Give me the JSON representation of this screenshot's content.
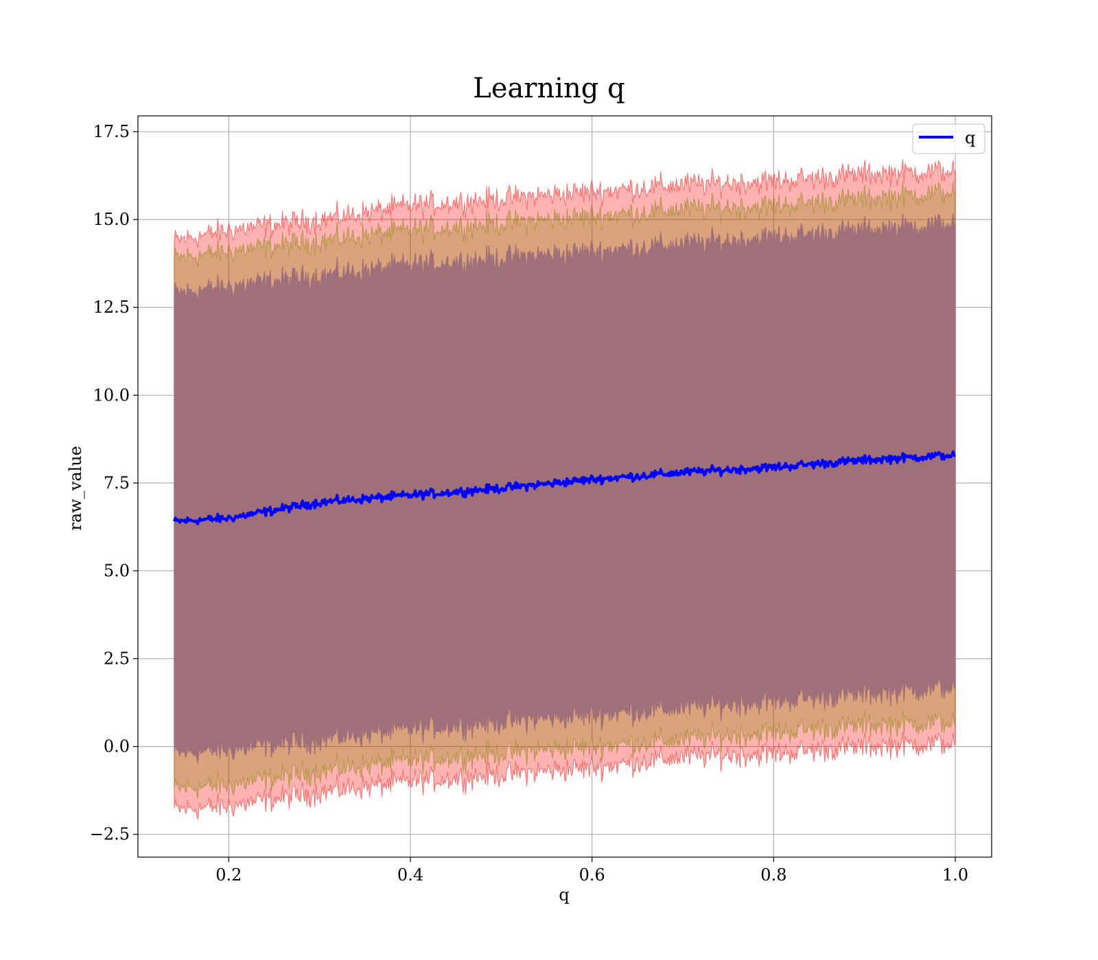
{
  "chart_data": {
    "type": "area",
    "title": "Learning q",
    "xlabel": "q",
    "ylabel": "raw_value",
    "xlim": [
      0.1,
      1.04
    ],
    "ylim": [
      -3.15,
      17.95
    ],
    "x_range": [
      0.14,
      1.0
    ],
    "x_ticks": [
      0.2,
      0.4,
      0.6,
      0.8,
      1.0
    ],
    "x_tick_labels": [
      "0.2",
      "0.4",
      "0.6",
      "0.8",
      "1.0"
    ],
    "y_ticks": [
      -2.5,
      0.0,
      2.5,
      5.0,
      7.5,
      10.0,
      12.5,
      15.0,
      17.5
    ],
    "y_tick_labels": [
      "−2.5",
      "0.0",
      "2.5",
      "5.0",
      "7.5",
      "10.0",
      "12.5",
      "15.0",
      "17.5"
    ],
    "grid": true,
    "legend": {
      "position": "upper right",
      "entries": [
        "q"
      ]
    },
    "mean": {
      "name": "q",
      "color": "#0000ff",
      "x": [
        0.14,
        0.2,
        0.3,
        0.4,
        0.5,
        0.6,
        0.7,
        0.8,
        0.9,
        1.0
      ],
      "y": [
        6.4,
        6.5,
        6.95,
        7.15,
        7.35,
        7.6,
        7.8,
        7.95,
        8.15,
        8.3
      ]
    },
    "bands": [
      {
        "color": "#ff0000",
        "opacity": 0.3,
        "x": [
          0.14,
          0.2,
          0.3,
          0.4,
          0.5,
          0.6,
          0.7,
          0.8,
          0.9,
          1.0
        ],
        "upper": [
          14.4,
          14.7,
          15.0,
          15.4,
          15.6,
          15.8,
          16.0,
          16.1,
          16.3,
          16.4
        ],
        "lower": [
          -1.8,
          -1.7,
          -1.3,
          -1.0,
          -0.8,
          -0.6,
          -0.3,
          -0.2,
          0.0,
          0.1
        ]
      },
      {
        "color": "#808000",
        "opacity": 0.3,
        "x": [
          0.14,
          0.2,
          0.3,
          0.4,
          0.5,
          0.6,
          0.7,
          0.8,
          0.9,
          1.0
        ],
        "upper": [
          13.9,
          14.1,
          14.4,
          14.7,
          14.9,
          15.1,
          15.3,
          15.4,
          15.6,
          15.8
        ],
        "lower": [
          -1.2,
          -1.1,
          -0.7,
          -0.4,
          -0.2,
          0.0,
          0.2,
          0.4,
          0.6,
          0.7
        ]
      },
      {
        "color": "#800080",
        "opacity": 0.3,
        "x": [
          0.14,
          0.2,
          0.3,
          0.4,
          0.5,
          0.6,
          0.7,
          0.8,
          0.9,
          1.0
        ],
        "upper": [
          12.9,
          13.1,
          13.4,
          13.7,
          13.9,
          14.1,
          14.3,
          14.5,
          14.7,
          14.9
        ],
        "lower": [
          -0.2,
          -0.1,
          0.2,
          0.5,
          0.7,
          0.9,
          1.1,
          1.3,
          1.5,
          1.7
        ]
      },
      {
        "color": "#a0707a",
        "opacity": 1.0,
        "x": [
          0.14,
          0.2,
          0.3,
          0.4,
          0.5,
          0.6,
          0.7,
          0.8,
          0.9,
          1.0
        ],
        "upper": [
          12.9,
          13.1,
          13.4,
          13.7,
          13.9,
          14.1,
          14.3,
          14.5,
          14.7,
          14.9
        ],
        "lower": [
          -0.2,
          -0.1,
          0.2,
          0.5,
          0.7,
          0.9,
          1.1,
          1.3,
          1.5,
          1.7
        ]
      }
    ]
  }
}
